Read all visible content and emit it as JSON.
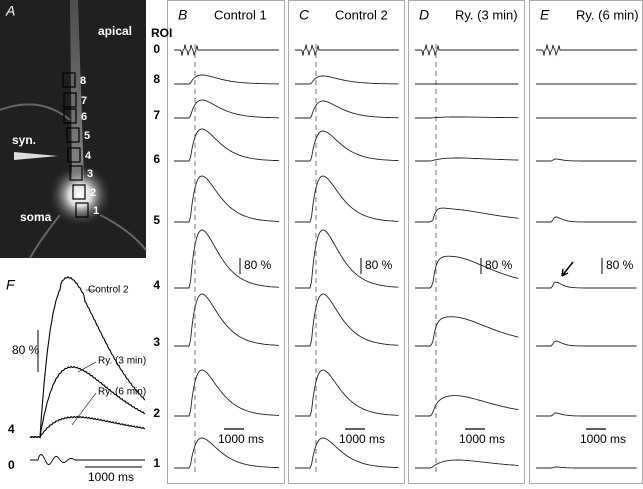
{
  "panel_a": {
    "label": "A",
    "apical": "apical",
    "synapse": "syn.",
    "soma": "soma",
    "rois": [
      "8",
      "7",
      "6",
      "5",
      "4",
      "3",
      "2",
      "1"
    ]
  },
  "roi_header": "ROI",
  "roi_rows": [
    "0",
    "8",
    "7",
    "6",
    "5",
    "4",
    "3",
    "2",
    "1"
  ],
  "panels": [
    {
      "label": "B",
      "title": "Control 1",
      "scale_y": "80 %",
      "scale_x": "1000 ms"
    },
    {
      "label": "C",
      "title": "Control 2",
      "scale_y": "80 %",
      "scale_x": "1000 ms"
    },
    {
      "label": "D",
      "title": "Ry. (3 min)",
      "scale_y": "80 %",
      "scale_x": "1000 ms"
    },
    {
      "label": "E",
      "title": "Ry. (6 min)",
      "scale_y": "80 %",
      "scale_x": "1000 ms"
    }
  ],
  "panel_f": {
    "label": "F",
    "traces": [
      "Control 2",
      "Ry. (3 min)",
      "Ry. (6 min)"
    ],
    "scale_y": "80 %",
    "roi_labels": [
      "4",
      "0"
    ],
    "scale_x": "1000 ms"
  }
}
